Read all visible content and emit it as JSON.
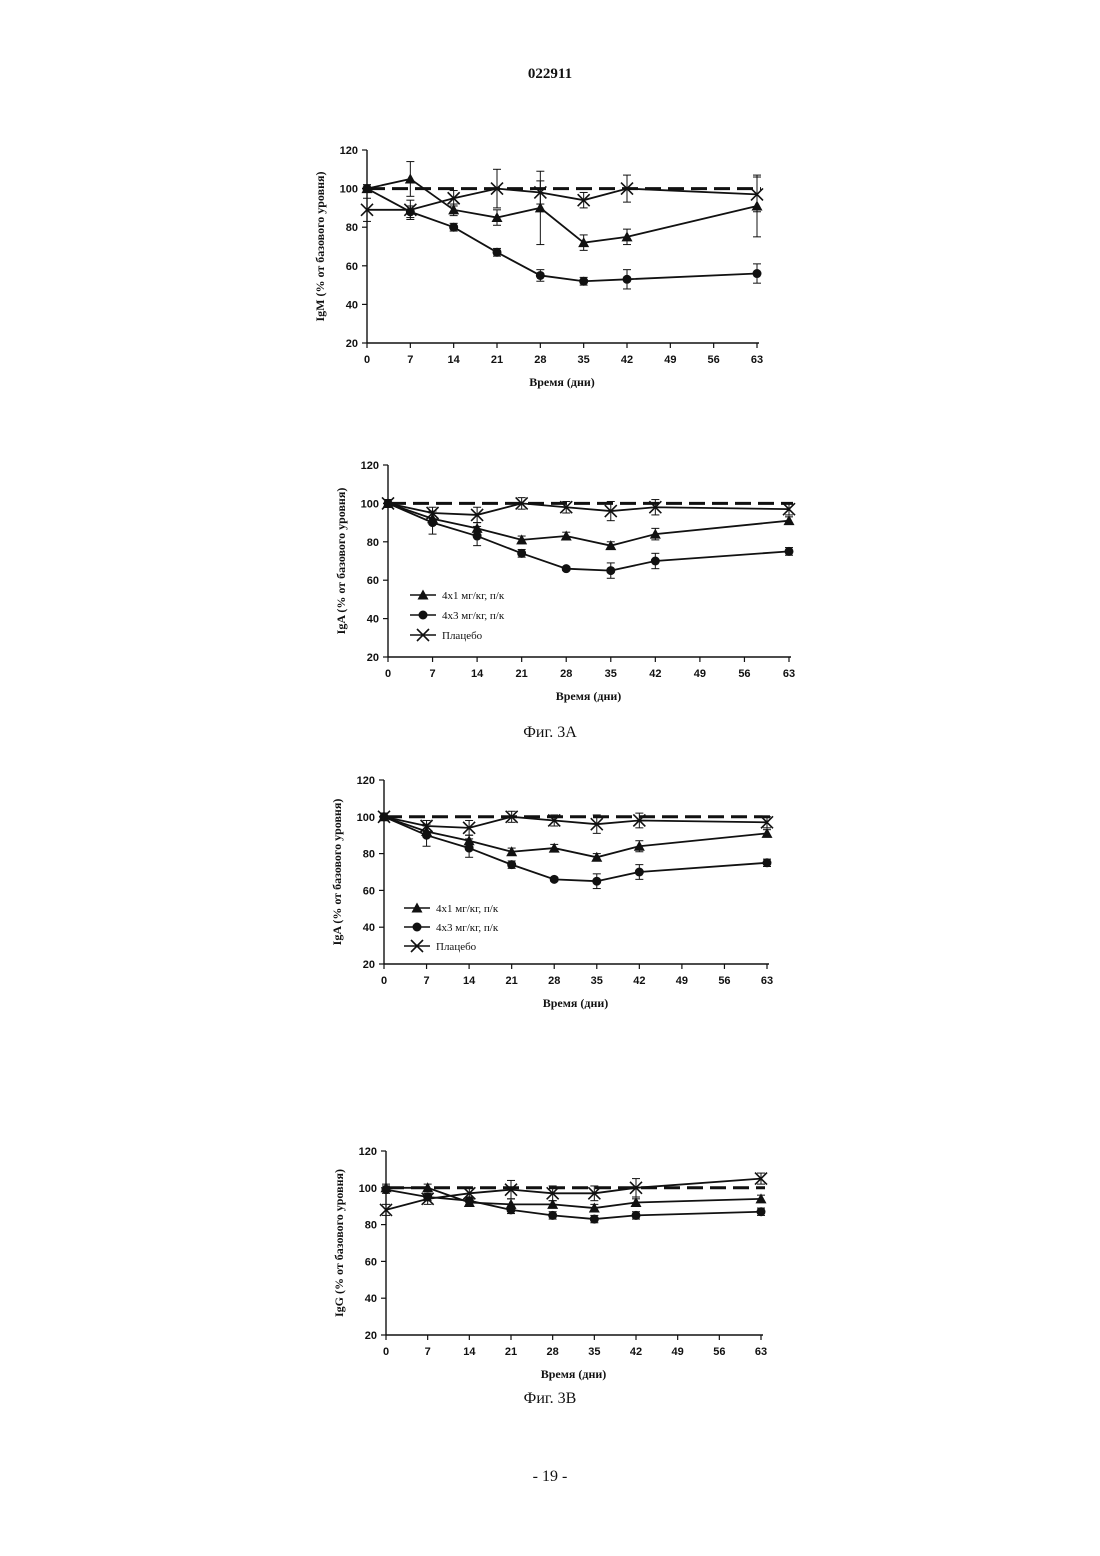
{
  "page": {
    "number": "022911",
    "footer": "- 19 -",
    "captions": [
      "Фиг. 3А",
      "Фиг. 3В"
    ]
  },
  "colors": {
    "ink": "#111111",
    "paper": "#ffffff"
  },
  "chart_data": [
    {
      "type": "line",
      "ylabel": "IgM (% от базового уровня)",
      "xlabel": "Время (дни)",
      "xticks": [
        0,
        7,
        14,
        21,
        28,
        35,
        42,
        49,
        56,
        63
      ],
      "xlim": [
        0,
        63
      ],
      "ylim": [
        20,
        120
      ],
      "yticks": [
        20,
        40,
        60,
        80,
        100,
        120
      ],
      "reference_line": 100,
      "legend": false,
      "series": [
        {
          "marker": "triangle",
          "x": [
            0,
            7,
            14,
            21,
            28,
            35,
            42,
            63
          ],
          "values": [
            100,
            105,
            89,
            85,
            90,
            72,
            75,
            91
          ],
          "errors": [
            2,
            9,
            3,
            4,
            19,
            4,
            4,
            16
          ]
        },
        {
          "marker": "circle",
          "x": [
            0,
            7,
            14,
            21,
            28,
            35,
            42,
            63
          ],
          "values": [
            100,
            88,
            80,
            67,
            55,
            52,
            53,
            56
          ],
          "errors": [
            2,
            3,
            2,
            2,
            3,
            2,
            5,
            5
          ]
        },
        {
          "marker": "x",
          "x": [
            0,
            7,
            14,
            21,
            28,
            35,
            42,
            63
          ],
          "values": [
            89,
            89,
            95,
            100,
            98,
            94,
            100,
            97
          ],
          "errors": [
            6,
            5,
            4,
            10,
            6,
            4,
            7,
            9
          ]
        }
      ]
    },
    {
      "type": "line",
      "ylabel": "IgA (% от базового уровня)",
      "xlabel": "Время (дни)",
      "xticks": [
        0,
        7,
        14,
        21,
        28,
        35,
        42,
        49,
        56,
        63
      ],
      "xlim": [
        0,
        63
      ],
      "ylim": [
        20,
        120
      ],
      "yticks": [
        20,
        40,
        60,
        80,
        100,
        120
      ],
      "reference_line": 100,
      "legend": true,
      "series": [
        {
          "name": "4х1 мг/кг, п/к",
          "marker": "triangle",
          "x": [
            0,
            7,
            14,
            21,
            28,
            35,
            42,
            63
          ],
          "values": [
            100,
            92,
            87,
            81,
            83,
            78,
            84,
            91
          ],
          "errors": [
            2,
            3,
            3,
            2,
            2,
            2,
            3,
            2
          ]
        },
        {
          "name": "4х3 мг/кг, п/к",
          "marker": "circle",
          "x": [
            0,
            7,
            14,
            21,
            28,
            35,
            42,
            63
          ],
          "values": [
            100,
            90,
            83,
            74,
            66,
            65,
            70,
            75
          ],
          "errors": [
            2,
            6,
            5,
            2,
            1,
            4,
            4,
            2
          ]
        },
        {
          "name": "Плацебо",
          "marker": "x",
          "x": [
            0,
            7,
            14,
            21,
            28,
            35,
            42,
            63
          ],
          "values": [
            100,
            95,
            94,
            100,
            98,
            96,
            98,
            97
          ],
          "errors": [
            2,
            3,
            4,
            3,
            3,
            5,
            4,
            3
          ]
        }
      ]
    },
    {
      "type": "line",
      "ylabel": "IgA (% от базового уровня)",
      "xlabel": "Время (дни)",
      "xticks": [
        0,
        7,
        14,
        21,
        28,
        35,
        42,
        49,
        56,
        63
      ],
      "xlim": [
        0,
        63
      ],
      "ylim": [
        20,
        120
      ],
      "yticks": [
        20,
        40,
        60,
        80,
        100,
        120
      ],
      "reference_line": 100,
      "legend": true,
      "series": [
        {
          "name": "4х1  мг/кг, п/к",
          "marker": "triangle",
          "x": [
            0,
            7,
            14,
            21,
            28,
            35,
            42,
            63
          ],
          "values": [
            100,
            92,
            87,
            81,
            83,
            78,
            84,
            91
          ],
          "errors": [
            2,
            3,
            3,
            2,
            2,
            2,
            3,
            2
          ]
        },
        {
          "name": "4х3   мг/кг, п/к",
          "marker": "circle",
          "x": [
            0,
            7,
            14,
            21,
            28,
            35,
            42,
            63
          ],
          "values": [
            100,
            90,
            83,
            74,
            66,
            65,
            70,
            75
          ],
          "errors": [
            2,
            6,
            5,
            2,
            1,
            4,
            4,
            2
          ]
        },
        {
          "name": "Плацебо",
          "marker": "x",
          "x": [
            0,
            7,
            14,
            21,
            28,
            35,
            42,
            63
          ],
          "values": [
            100,
            95,
            94,
            100,
            98,
            96,
            98,
            97
          ],
          "errors": [
            2,
            3,
            4,
            3,
            3,
            5,
            4,
            3
          ]
        }
      ]
    },
    {
      "type": "line",
      "ylabel": "IgG (% от базового уровня)",
      "xlabel": "Время (дни)",
      "xticks": [
        0,
        7,
        14,
        21,
        28,
        35,
        42,
        49,
        56,
        63
      ],
      "xlim": [
        0,
        63
      ],
      "ylim": [
        20,
        120
      ],
      "yticks": [
        20,
        40,
        60,
        80,
        100,
        120
      ],
      "reference_line": 100,
      "legend": false,
      "series": [
        {
          "marker": "triangle",
          "x": [
            0,
            7,
            14,
            21,
            28,
            35,
            42,
            63
          ],
          "values": [
            100,
            100,
            92,
            91,
            91,
            89,
            92,
            94
          ],
          "errors": [
            2,
            2,
            2,
            3,
            2,
            2,
            2,
            2
          ]
        },
        {
          "marker": "circle",
          "x": [
            0,
            7,
            14,
            21,
            28,
            35,
            42,
            63
          ],
          "values": [
            99,
            95,
            93,
            88,
            85,
            83,
            85,
            87
          ],
          "errors": [
            2,
            2,
            2,
            2,
            2,
            2,
            2,
            2
          ]
        },
        {
          "marker": "x",
          "x": [
            0,
            7,
            14,
            21,
            28,
            35,
            42,
            63
          ],
          "values": [
            88,
            94,
            97,
            99,
            97,
            97,
            100,
            105
          ],
          "errors": [
            3,
            3,
            3,
            5,
            4,
            4,
            5,
            3
          ]
        }
      ]
    }
  ]
}
